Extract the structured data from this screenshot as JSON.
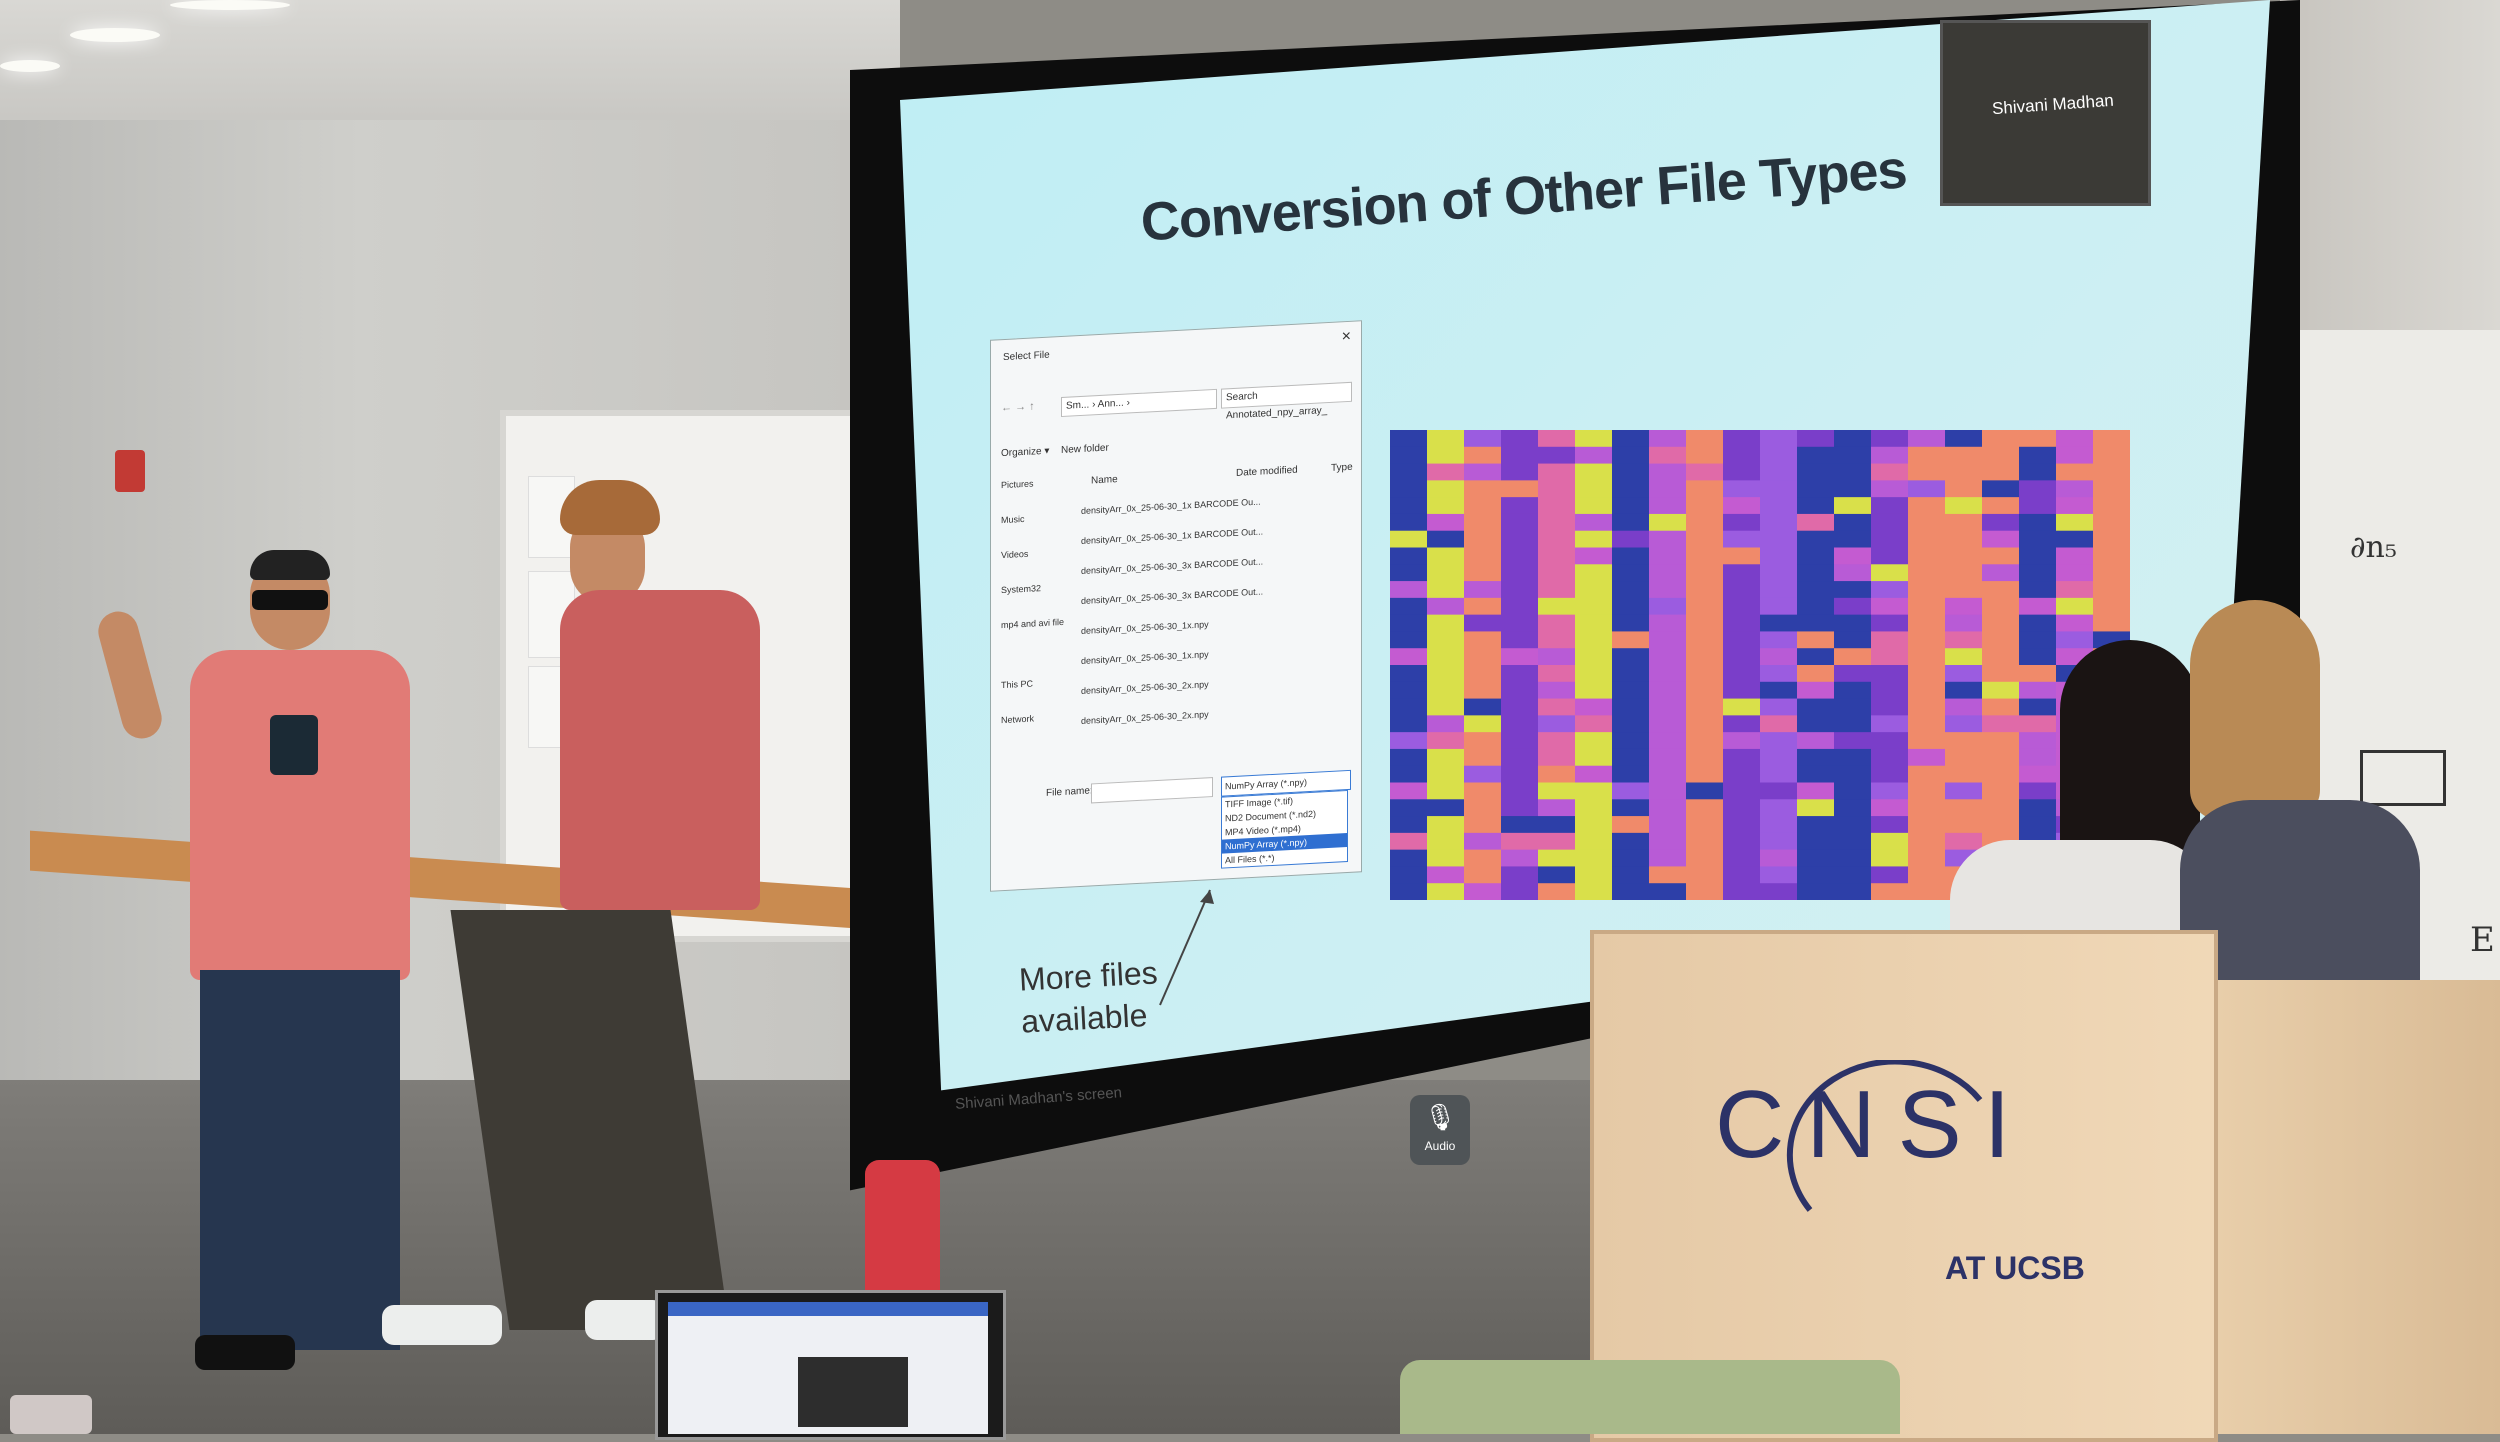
{
  "slide": {
    "title": "Conversion of Other File Types",
    "presenter_name": "Shivani Madhan",
    "screen_caption": "Shivani Madhan's screen",
    "audio_label": "Audio",
    "annotation_line1": "More files",
    "annotation_line2": "available"
  },
  "dialog": {
    "title": "Select File",
    "address": "Sm... › Ann... ›",
    "search_placeholder": "Search Annotated_npy_array_",
    "toolbar": [
      "Organize ▾",
      "New folder"
    ],
    "columns": [
      "Name",
      "Date modified",
      "Type"
    ],
    "nav": [
      "Pictures",
      "Music",
      "Videos",
      "System32",
      "mp4 and avi file",
      "This PC",
      "Network"
    ],
    "files": [
      "densityArr_0x_25-06-30_1x BARCODE Ou...",
      "densityArr_0x_25-06-30_1x BARCODE Out...",
      "densityArr_0x_25-06-30_3x BARCODE Out...",
      "densityArr_0x_25-06-30_3x BARCODE Out...",
      "densityArr_0x_25-06-30_1x.npy",
      "densityArr_0x_25-06-30_1x.npy",
      "densityArr_0x_25-06-30_2x.npy",
      "densityArr_0x_25-06-30_2x.npy"
    ],
    "filename_label": "File name:",
    "selected_type": "NumPy Array (*.npy)",
    "type_options": [
      "TIFF Image (*.tif)",
      "ND2 Document (*.nd2)",
      "MP4 Video (*.mp4)",
      "NumPy Array (*.npy)",
      "All Files (*.*)"
    ]
  },
  "podium": {
    "logo": "CNSI",
    "subtitle": "AT UCSB"
  },
  "colors": {
    "heatmap": [
      "#7a3ec9",
      "#c45bd1",
      "#e06aa8",
      "#2d3fa8",
      "#d9e04a",
      "#b85bd6",
      "#f08a6a",
      "#9b5ce0"
    ]
  }
}
